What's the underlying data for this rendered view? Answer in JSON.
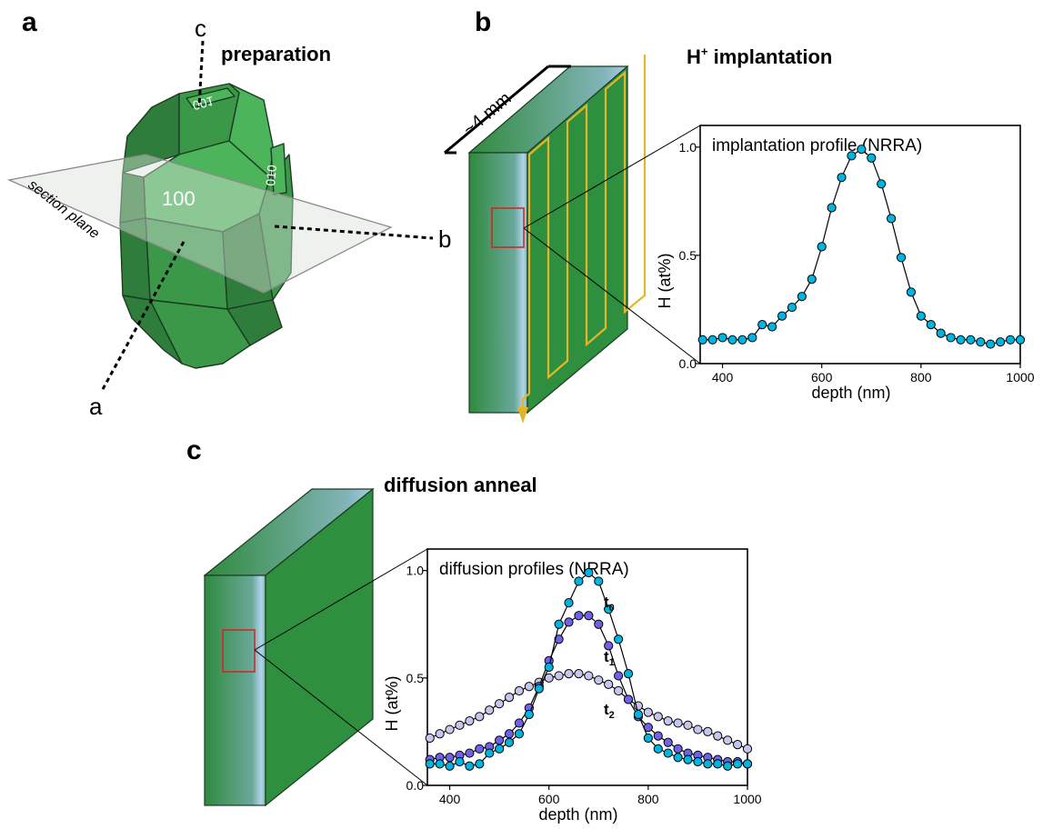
{
  "panels": {
    "a": {
      "label": "a",
      "title": "preparation",
      "face_100": "100",
      "face_001": "001",
      "face_010": "010",
      "section_plane": "section plane",
      "axis_a": "a",
      "axis_b": "b",
      "axis_c": "c"
    },
    "b": {
      "label": "b",
      "title_main": "H",
      "title_sup": "+",
      "title_rest": " implantation",
      "size_label": "~4 mm"
    },
    "c": {
      "label": "c",
      "title": "diffusion anneal"
    }
  },
  "colors": {
    "crystal_dark": "#2e7d3a",
    "crystal_mid": "#3a9848",
    "crystal_light": "#4cb45a",
    "beam": "#e3b627",
    "marker": "#00b4e0",
    "t1": "#6f62e8",
    "t2": "#c4c6ec"
  },
  "chart_data": [
    {
      "type": "scatter",
      "title": "implantation profile (NRRA)",
      "xlabel": "depth (nm)",
      "ylabel": "H (at%)",
      "xlim": [
        355,
        1000
      ],
      "ylim": [
        0,
        1.1
      ],
      "xticks": [
        400,
        600,
        800,
        1000
      ],
      "yticks": [
        0.0,
        0.5,
        1.0
      ],
      "ytick_labels": [
        "0.0",
        "0.5",
        "1.0"
      ],
      "series": [
        {
          "name": "",
          "color": "#00b4e0",
          "x": [
            360,
            380,
            400,
            420,
            440,
            460,
            480,
            500,
            520,
            540,
            560,
            580,
            600,
            620,
            640,
            660,
            680,
            700,
            720,
            740,
            760,
            780,
            800,
            820,
            840,
            860,
            880,
            900,
            920,
            940,
            960,
            980,
            1000
          ],
          "y": [
            0.11,
            0.11,
            0.12,
            0.11,
            0.11,
            0.12,
            0.18,
            0.17,
            0.22,
            0.26,
            0.31,
            0.39,
            0.54,
            0.72,
            0.86,
            0.96,
            0.99,
            0.95,
            0.83,
            0.67,
            0.49,
            0.33,
            0.22,
            0.18,
            0.14,
            0.12,
            0.11,
            0.11,
            0.1,
            0.09,
            0.1,
            0.11,
            0.11
          ]
        }
      ]
    },
    {
      "type": "scatter",
      "title": "diffusion profiles (NRRA)",
      "xlabel": "depth (nm)",
      "ylabel": "H (at%)",
      "xlim": [
        355,
        1000
      ],
      "ylim": [
        0,
        1.1
      ],
      "xticks": [
        400,
        600,
        800,
        1000
      ],
      "yticks": [
        0.0,
        0.5,
        1.0
      ],
      "ytick_labels": [
        "0.0",
        "0.5",
        "1.0"
      ],
      "series": [
        {
          "name": "t0",
          "color": "#00b4e0",
          "x": [
            360,
            380,
            400,
            420,
            440,
            460,
            480,
            500,
            520,
            540,
            560,
            580,
            600,
            620,
            640,
            660,
            680,
            700,
            720,
            740,
            760,
            780,
            800,
            820,
            840,
            860,
            880,
            900,
            920,
            940,
            960,
            980,
            1000
          ],
          "y": [
            0.1,
            0.1,
            0.09,
            0.11,
            0.09,
            0.1,
            0.15,
            0.17,
            0.2,
            0.24,
            0.33,
            0.45,
            0.55,
            0.75,
            0.85,
            0.95,
            0.99,
            0.95,
            0.82,
            0.68,
            0.52,
            0.33,
            0.22,
            0.17,
            0.15,
            0.13,
            0.12,
            0.11,
            0.1,
            0.1,
            0.09,
            0.1,
            0.1
          ]
        },
        {
          "name": "t1",
          "color": "#6f62e8",
          "x": [
            360,
            380,
            400,
            420,
            440,
            460,
            480,
            500,
            520,
            540,
            560,
            580,
            600,
            620,
            640,
            660,
            680,
            700,
            720,
            740,
            760,
            780,
            800,
            820,
            840,
            860,
            880,
            900,
            920,
            940,
            960,
            980,
            1000
          ],
          "y": [
            0.12,
            0.13,
            0.13,
            0.14,
            0.15,
            0.17,
            0.18,
            0.21,
            0.24,
            0.29,
            0.36,
            0.46,
            0.58,
            0.68,
            0.76,
            0.79,
            0.79,
            0.75,
            0.65,
            0.51,
            0.4,
            0.32,
            0.27,
            0.23,
            0.2,
            0.17,
            0.15,
            0.14,
            0.13,
            0.12,
            0.11,
            0.11,
            0.1
          ]
        },
        {
          "name": "t2",
          "color": "#c4c6ec",
          "x": [
            360,
            380,
            400,
            420,
            440,
            460,
            480,
            500,
            520,
            540,
            560,
            580,
            600,
            620,
            640,
            660,
            680,
            700,
            720,
            740,
            760,
            780,
            800,
            820,
            840,
            860,
            880,
            900,
            920,
            940,
            960,
            980,
            1000
          ],
          "y": [
            0.22,
            0.24,
            0.26,
            0.28,
            0.3,
            0.32,
            0.35,
            0.38,
            0.41,
            0.44,
            0.46,
            0.48,
            0.5,
            0.51,
            0.52,
            0.52,
            0.51,
            0.49,
            0.47,
            0.44,
            0.4,
            0.37,
            0.34,
            0.32,
            0.3,
            0.29,
            0.28,
            0.26,
            0.25,
            0.23,
            0.21,
            0.19,
            0.17
          ]
        }
      ]
    }
  ]
}
